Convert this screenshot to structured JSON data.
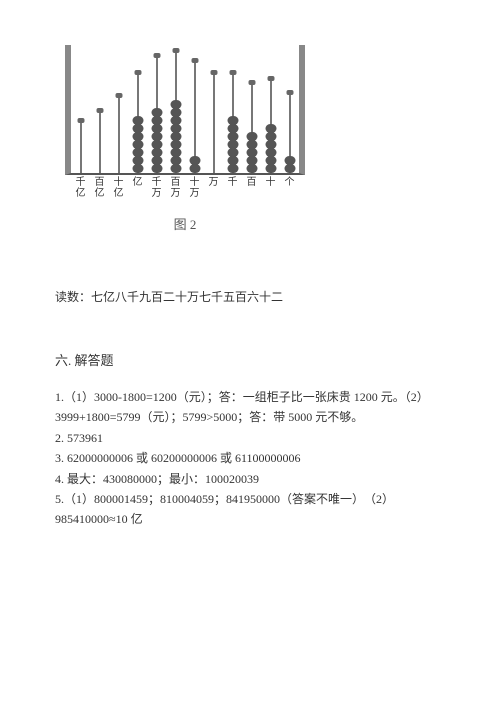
{
  "abacus": {
    "columns": [
      {
        "label_top": "千",
        "label_bottom": "亿",
        "beads": 0,
        "rod_h": 50
      },
      {
        "label_top": "百",
        "label_bottom": "亿",
        "beads": 0,
        "rod_h": 60
      },
      {
        "label_top": "十",
        "label_bottom": "亿",
        "beads": 0,
        "rod_h": 75
      },
      {
        "label_top": "亿",
        "label_bottom": "",
        "beads": 7,
        "rod_h": 98
      },
      {
        "label_top": "千",
        "label_bottom": "万",
        "beads": 8,
        "rod_h": 115
      },
      {
        "label_top": "百",
        "label_bottom": "万",
        "beads": 9,
        "rod_h": 120
      },
      {
        "label_top": "十",
        "label_bottom": "万",
        "beads": 2,
        "rod_h": 110
      },
      {
        "label_top": "万",
        "label_bottom": "",
        "beads": 0,
        "rod_h": 98
      },
      {
        "label_top": "千",
        "label_bottom": "",
        "beads": 7,
        "rod_h": 98
      },
      {
        "label_top": "百",
        "label_bottom": "",
        "beads": 5,
        "rod_h": 88
      },
      {
        "label_top": "十",
        "label_bottom": "",
        "beads": 6,
        "rod_h": 92
      },
      {
        "label_top": "个",
        "label_bottom": "",
        "beads": 2,
        "rod_h": 78
      }
    ],
    "caption": "图 2"
  },
  "read_line_label": "读数：",
  "read_line_value": "七亿八千九百二十万七千五百六十二",
  "section_title": "六. 解答题",
  "answers": [
    "1.（1）3000-1800=1200（元）；答：一组柜子比一张床贵 1200 元。（2）3999+1800=5799（元）；5799>5000；答：带 5000 元不够。",
    "2. 573961",
    "3. 62000000006 或 60200000006 或 61100000006",
    "4. 最大：430080000；最小：100020039",
    "5.（1）800001459；810004059；841950000（答案不唯一）　（2）985410000≈10 亿"
  ]
}
